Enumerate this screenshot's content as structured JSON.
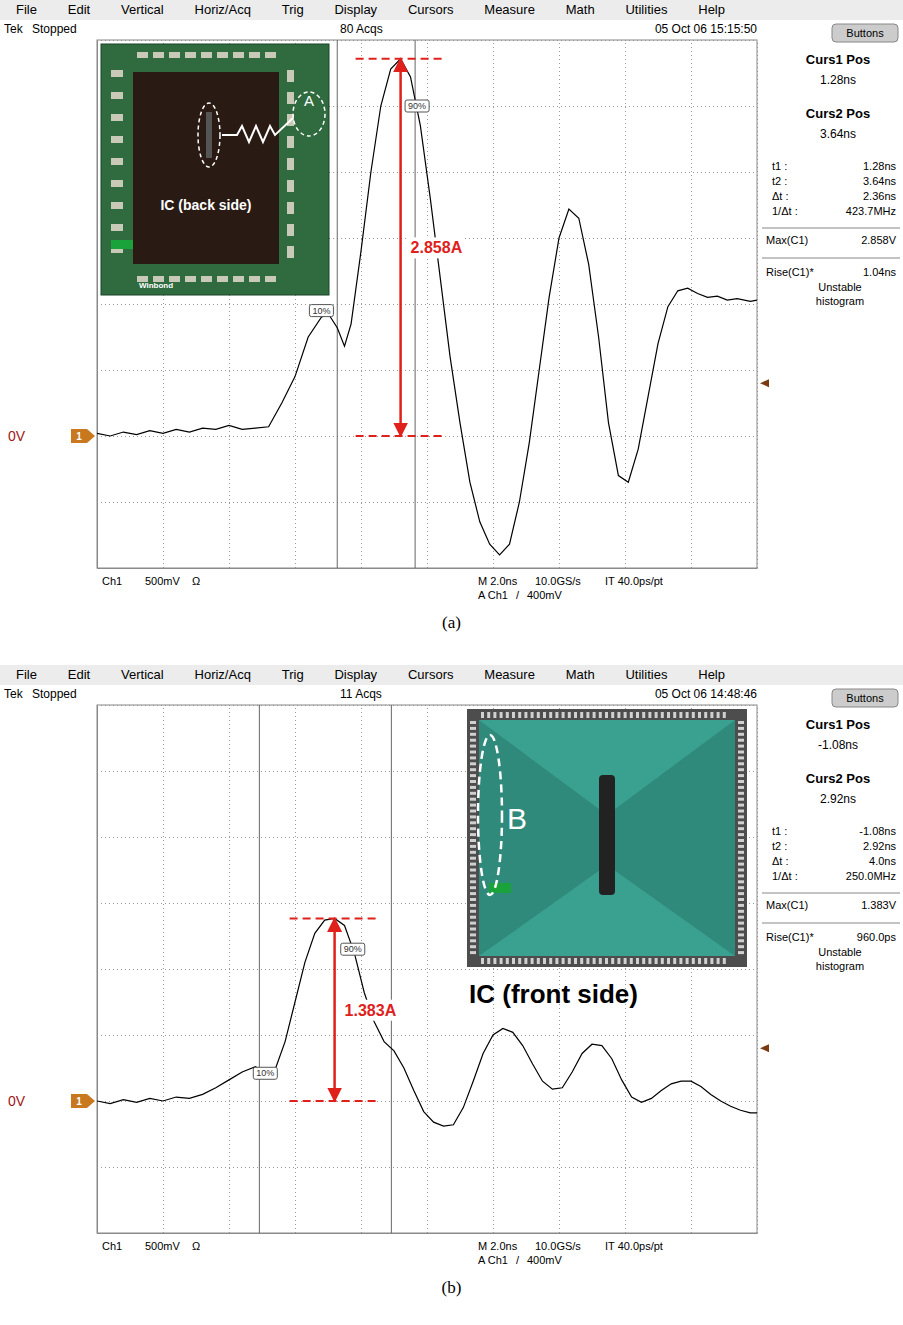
{
  "chart_data": [
    {
      "type": "line",
      "caption": "(a)",
      "menu": [
        "File",
        "Edit",
        "Vertical",
        "Horiz/Acq",
        "Trig",
        "Display",
        "Cursors",
        "Measure",
        "Math",
        "Utilities",
        "Help"
      ],
      "status": [
        "Tek",
        "Stopped",
        "80 Acqs",
        "05 Oct 06 15:15:50"
      ],
      "button": "Buttons",
      "cursor_titles": [
        "Curs1 Pos",
        "Curs2 Pos"
      ],
      "cursors": [
        {
          "value": 1.28,
          "label": "1.28ns"
        },
        {
          "value": 3.64,
          "label": "3.64ns"
        }
      ],
      "readout": [
        [
          "t1 :",
          "1.28ns"
        ],
        [
          "t2 :",
          "3.64ns"
        ],
        [
          "Δt :",
          "2.36ns"
        ],
        [
          "1/Δt :",
          "423.7MHz"
        ]
      ],
      "measurements": [
        [
          "Max(C1)",
          "2.858V"
        ],
        [
          "Rise(C1)*",
          "1.04ns"
        ]
      ],
      "measurement_note": [
        "Unstable",
        "histogram"
      ],
      "footer": [
        "Ch1",
        "500mV",
        "Ω",
        "M 2.0ns",
        "10.0GS/s",
        "IT 40.0ps/pt",
        "A Ch1",
        "/",
        "400mV"
      ],
      "trigger_level": 0.4,
      "ground_level": 0,
      "ground_label": "0V",
      "ground_marker": "1",
      "peak": {
        "value": 2.858,
        "label": "2.858A"
      },
      "edge_marks": [
        {
          "label": "10%",
          "x": 0.8,
          "y": 0.95
        },
        {
          "label": "90%",
          "x": 3.7,
          "y": 2.5
        }
      ],
      "inset": {
        "title": "IC (back side)",
        "region": "A",
        "logo": "Winbond"
      },
      "color": "#000000",
      "x": [
        -6,
        -5.6,
        -5.2,
        -4.8,
        -4.4,
        -4,
        -3.6,
        -3.2,
        -2.8,
        -2.4,
        -2,
        -1.6,
        -1.2,
        -0.8,
        -0.4,
        0,
        0.4,
        0.8,
        1,
        1.28,
        1.5,
        1.7,
        2,
        2.3,
        2.6,
        2.9,
        3.2,
        3.5,
        3.8,
        4.1,
        4.4,
        4.7,
        5,
        5.3,
        5.6,
        5.9,
        6.2,
        6.5,
        6.8,
        7.1,
        7.4,
        7.7,
        8,
        8.3,
        8.6,
        8.9,
        9.2,
        9.5,
        9.8,
        10.1,
        10.4,
        10.7,
        11,
        11.3,
        11.6,
        11.9,
        12.2,
        12.5,
        12.8,
        13.1,
        13.4,
        13.8,
        14
      ],
      "values": [
        0.02,
        0,
        0.03,
        0.01,
        0.04,
        0.02,
        0.05,
        0.03,
        0.06,
        0.05,
        0.08,
        0.05,
        0.06,
        0.07,
        0.25,
        0.45,
        0.75,
        0.9,
        0.93,
        0.82,
        0.68,
        0.85,
        1.4,
        2.0,
        2.5,
        2.78,
        2.858,
        2.72,
        2.35,
        1.8,
        1.2,
        0.6,
        0.1,
        -0.35,
        -0.65,
        -0.82,
        -0.9,
        -0.82,
        -0.5,
        -0.05,
        0.5,
        1.05,
        1.5,
        1.72,
        1.65,
        1.3,
        0.75,
        0.1,
        -0.3,
        -0.35,
        -0.1,
        0.3,
        0.7,
        0.98,
        1.1,
        1.12,
        1.08,
        1.05,
        1.06,
        1.03,
        1.04,
        1.02,
        1.03
      ],
      "xlim": [
        -6,
        14
      ],
      "xticks": [
        -6,
        -4,
        -2,
        0,
        2,
        4,
        6,
        8,
        10,
        12,
        14
      ],
      "ylim": [
        -1,
        3
      ],
      "yticks": [
        -1,
        -0.5,
        0,
        0.5,
        1,
        1.5,
        2,
        2.5,
        3
      ],
      "grid": true,
      "tick_labels": false
    },
    {
      "type": "line",
      "caption": "(b)",
      "menu": [
        "File",
        "Edit",
        "Vertical",
        "Horiz/Acq",
        "Trig",
        "Display",
        "Cursors",
        "Measure",
        "Math",
        "Utilities",
        "Help"
      ],
      "status": [
        "Tek",
        "Stopped",
        "11 Acqs",
        "05 Oct 06 14:48:46"
      ],
      "button": "Buttons",
      "cursor_titles": [
        "Curs1 Pos",
        "Curs2 Pos"
      ],
      "cursors": [
        {
          "value": -1.08,
          "label": "-1.08ns"
        },
        {
          "value": 2.92,
          "label": "2.92ns"
        }
      ],
      "readout": [
        [
          "t1 :",
          "-1.08ns"
        ],
        [
          "t2 :",
          "2.92ns"
        ],
        [
          "Δt :",
          "4.0ns"
        ],
        [
          "1/Δt :",
          "250.0MHz"
        ]
      ],
      "measurements": [
        [
          "Max(C1)",
          "1.383V"
        ],
        [
          "Rise(C1)*",
          "960.0ps"
        ]
      ],
      "measurement_note": [
        "Unstable",
        "histogram"
      ],
      "footer": [
        "Ch1",
        "500mV",
        "Ω",
        "M 2.0ns",
        "10.0GS/s",
        "IT 40.0ps/pt",
        "A Ch1",
        "/",
        "400mV"
      ],
      "trigger_level": 0.4,
      "ground_level": 0,
      "ground_label": "0V",
      "ground_marker": "1",
      "peak": {
        "value": 1.383,
        "label": "1.383A"
      },
      "edge_marks": [
        {
          "label": "10%",
          "x": -0.9,
          "y": 0.21
        },
        {
          "label": "90%",
          "x": 1.75,
          "y": 1.15
        }
      ],
      "inset": {
        "title": "IC (front side)",
        "region": "B"
      },
      "color": "#000000",
      "x": [
        -6,
        -5.6,
        -5.2,
        -4.8,
        -4.4,
        -4,
        -3.6,
        -3.2,
        -2.8,
        -2.4,
        -2,
        -1.6,
        -1.2,
        -0.9,
        -0.6,
        -0.3,
        0,
        0.3,
        0.6,
        0.9,
        1.2,
        1.5,
        1.8,
        2.1,
        2.4,
        2.7,
        3,
        3.3,
        3.6,
        3.9,
        4.2,
        4.5,
        4.8,
        5.1,
        5.4,
        5.7,
        6,
        6.3,
        6.6,
        6.9,
        7.2,
        7.5,
        7.8,
        8.1,
        8.4,
        8.7,
        9,
        9.3,
        9.6,
        9.9,
        10.2,
        10.5,
        10.8,
        11.1,
        11.4,
        11.7,
        12,
        12.3,
        12.6,
        12.9,
        13.2,
        13.5,
        13.8,
        14
      ],
      "values": [
        0,
        -0.02,
        0.01,
        -0.01,
        0.02,
        0,
        0.03,
        0.02,
        0.05,
        0.1,
        0.16,
        0.22,
        0.26,
        0.21,
        0.24,
        0.45,
        0.75,
        1.05,
        1.27,
        1.37,
        1.383,
        1.33,
        1.12,
        0.82,
        0.6,
        0.45,
        0.38,
        0.25,
        0.08,
        -0.08,
        -0.16,
        -0.19,
        -0.18,
        -0.05,
        0.15,
        0.36,
        0.5,
        0.55,
        0.52,
        0.42,
        0.28,
        0.15,
        0.09,
        0.1,
        0.22,
        0.36,
        0.43,
        0.42,
        0.32,
        0.16,
        0.03,
        -0.01,
        0.02,
        0.08,
        0.13,
        0.15,
        0.15,
        0.11,
        0.05,
        0,
        -0.04,
        -0.07,
        -0.09,
        -0.09
      ],
      "xlim": [
        -6,
        14
      ],
      "xticks": [
        -6,
        -4,
        -2,
        0,
        2,
        4,
        6,
        8,
        10,
        12,
        14
      ],
      "ylim": [
        -1,
        3
      ],
      "yticks": [
        -1,
        -0.5,
        0,
        0.5,
        1,
        1.5,
        2,
        2.5,
        3
      ],
      "grid": true,
      "tick_labels": false
    }
  ]
}
